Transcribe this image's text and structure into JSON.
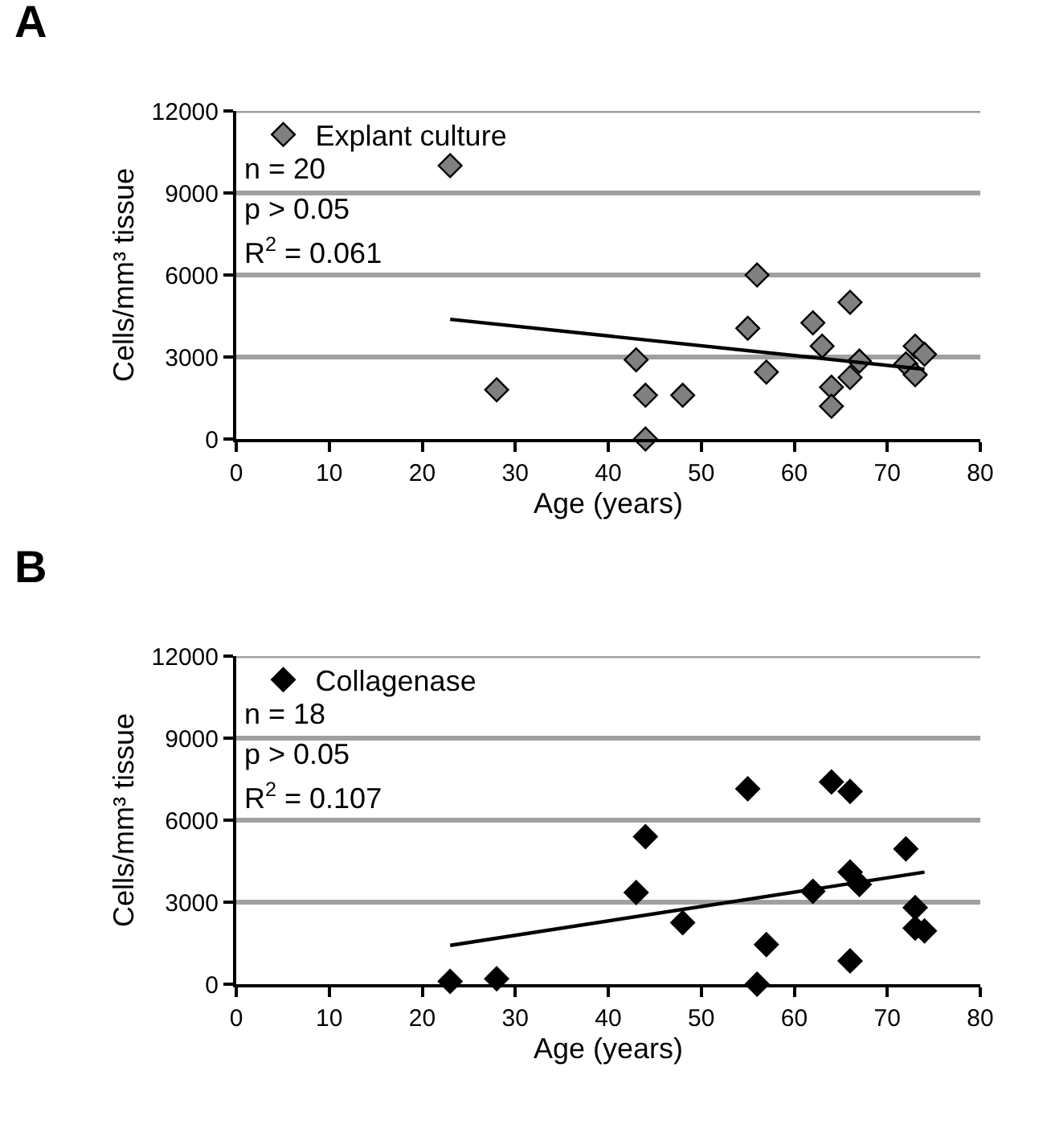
{
  "chart_data": [
    {
      "type": "scatter",
      "title": "A",
      "xlabel": "Age (years)",
      "ylabel": "Cells/mm³ tissue",
      "xlim": [
        0,
        80
      ],
      "xticks": [
        0,
        10,
        20,
        30,
        40,
        50,
        60,
        70,
        80
      ],
      "ylim": [
        0,
        12000
      ],
      "yticks": [
        0,
        3000,
        6000,
        9000,
        12000
      ],
      "grid": "y",
      "legend": "top left",
      "annotations": [
        "n = 20",
        "p > 0.05",
        "R$^{2}$ = 0.061"
      ],
      "series": [
        {
          "name": "Explant culture",
          "color": "#808080",
          "marker": "diamond",
          "x": [
            23,
            28,
            43,
            44,
            44,
            48,
            55,
            56,
            57,
            62,
            63,
            64,
            64,
            66,
            66,
            67,
            72,
            73,
            73,
            74
          ],
          "values": [
            10000,
            1800,
            2900,
            1600,
            0,
            1600,
            4050,
            6000,
            2450,
            4250,
            3400,
            1900,
            1200,
            5000,
            2250,
            2850,
            2750,
            3400,
            2350,
            3100
          ]
        },
        {
          "type": "line",
          "color": "#000000",
          "marker": "none",
          "x": [
            23,
            74
          ],
          "values": [
            4380,
            2550
          ]
        }
      ]
    },
    {
      "type": "scatter",
      "title": "B",
      "xlabel": "Age (years)",
      "ylabel": "Cells/mm³ tissue",
      "xlim": [
        0,
        80
      ],
      "xticks": [
        0,
        10,
        20,
        30,
        40,
        50,
        60,
        70,
        80
      ],
      "ylim": [
        0,
        12000
      ],
      "yticks": [
        0,
        3000,
        6000,
        9000,
        12000
      ],
      "grid": "y",
      "legend": "top left",
      "annotations": [
        "n = 18",
        "p > 0.05",
        "R$^{2}$ = 0.107"
      ],
      "series": [
        {
          "name": "Collagenase",
          "color": "#000000",
          "marker": "diamond",
          "x": [
            23,
            28,
            43,
            44,
            48,
            55,
            56,
            57,
            62,
            64,
            66,
            66,
            66,
            67,
            72,
            73,
            73,
            74
          ],
          "values": [
            100,
            200,
            3350,
            5400,
            2250,
            7150,
            0,
            1450,
            3400,
            7400,
            7050,
            4100,
            850,
            3650,
            4950,
            2800,
            2050,
            1950
          ]
        },
        {
          "type": "line",
          "color": "#000000",
          "marker": "none",
          "x": [
            23,
            74
          ],
          "values": [
            1420,
            4100
          ]
        }
      ]
    }
  ]
}
